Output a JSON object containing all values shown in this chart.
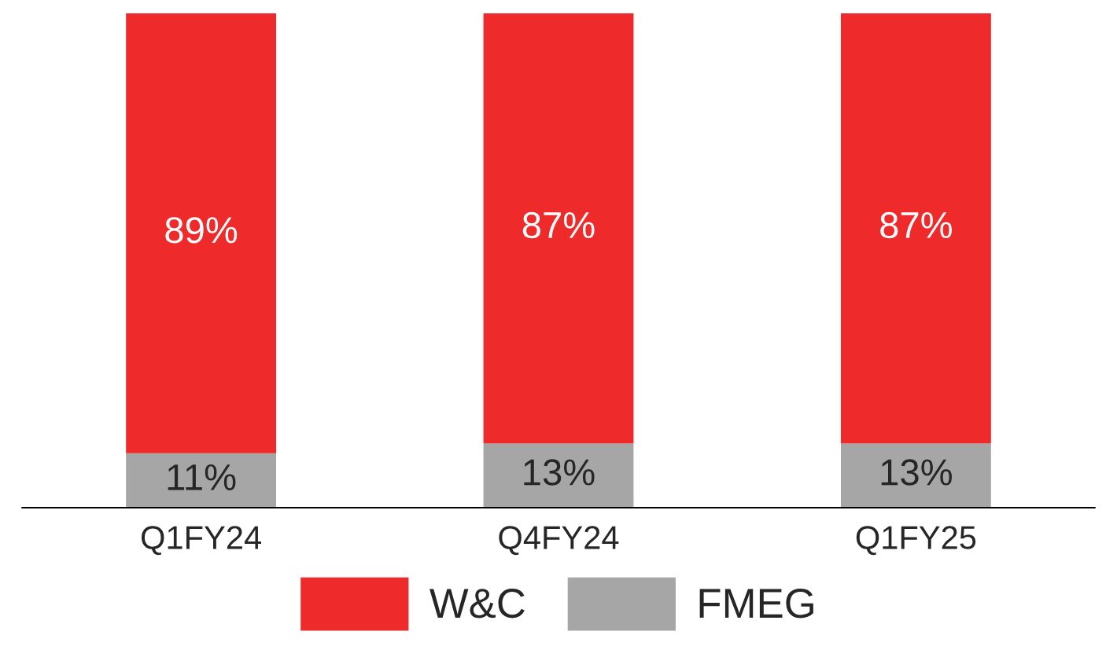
{
  "chart_data": {
    "type": "bar",
    "stacked": true,
    "categories": [
      "Q1FY24",
      "Q4FY24",
      "Q1FY25"
    ],
    "series": [
      {
        "name": "FMEG",
        "color": "#a6a6a6",
        "values": [
          11,
          13,
          13
        ],
        "value_labels": [
          "11%",
          "13%",
          "13%"
        ]
      },
      {
        "name": "W&C",
        "color": "#ee2a2a",
        "values": [
          89,
          87,
          87
        ],
        "value_labels": [
          "89%",
          "87%",
          "87%"
        ]
      }
    ],
    "legend": "bottom",
    "grid": false
  }
}
